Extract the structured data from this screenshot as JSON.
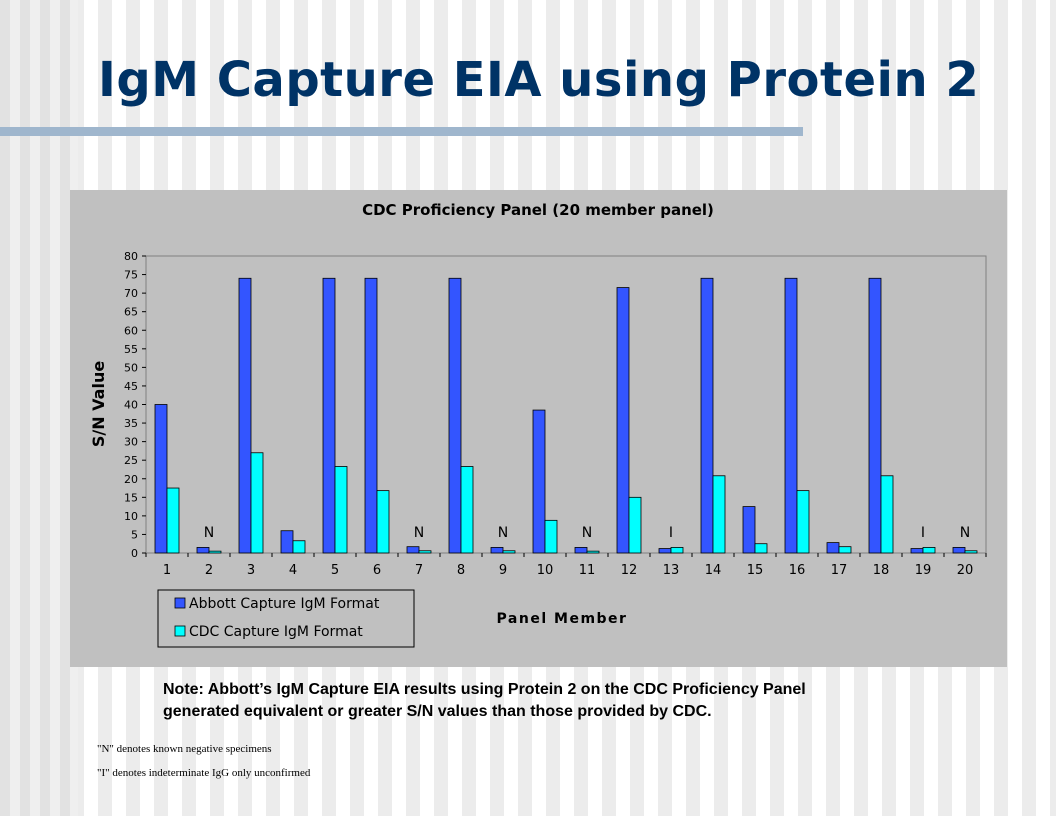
{
  "slide": {
    "title": "IgM Capture EIA using Protein 2",
    "note": "Note: Abbott’s IgM Capture EIA results using Protein 2 on the CDC Proficiency Panel generated equivalent or greater S/N values than those provided by CDC.",
    "footnotes": [
      "\"N\"  denotes known negative specimens",
      "\"I\"  denotes indeterminate IgG only unconfirmed"
    ]
  },
  "colors": {
    "title": "#003366",
    "abbott": "#3355ff",
    "cdc": "#00ffff",
    "panel_bg": "#c0c0c0",
    "rule": "#9fb6cd"
  },
  "chart_data": {
    "type": "bar",
    "title": "CDC Proficiency Panel (20 member panel)",
    "xlabel": "Panel Member",
    "ylabel": "S/N Value",
    "ylim": [
      0,
      80
    ],
    "yticks": [
      0,
      5,
      10,
      15,
      20,
      25,
      30,
      35,
      40,
      45,
      50,
      55,
      60,
      65,
      70,
      75,
      80
    ],
    "grid": false,
    "legend_position": "bottom-left",
    "categories": [
      "1",
      "2",
      "3",
      "4",
      "5",
      "6",
      "7",
      "8",
      "9",
      "10",
      "11",
      "12",
      "13",
      "14",
      "15",
      "16",
      "17",
      "18",
      "19",
      "20"
    ],
    "series": [
      {
        "name": "Abbott Capture IgM Format",
        "color": "#3355ff",
        "values": [
          40,
          1.5,
          74,
          6,
          74,
          74,
          1.7,
          74,
          1.5,
          38.5,
          1.5,
          71.5,
          1.2,
          74,
          12.5,
          74,
          2.8,
          74,
          1.2,
          1.5
        ]
      },
      {
        "name": "CDC Capture IgM Format",
        "color": "#00ffff",
        "values": [
          17.5,
          0.5,
          27,
          3.3,
          23.3,
          16.8,
          0.6,
          23.3,
          0.6,
          8.8,
          0.5,
          15,
          1.5,
          20.8,
          2.5,
          16.8,
          1.7,
          20.8,
          1.5,
          0.6
        ]
      }
    ],
    "annotations": [
      {
        "category": "2",
        "text": "N"
      },
      {
        "category": "7",
        "text": "N"
      },
      {
        "category": "9",
        "text": "N"
      },
      {
        "category": "11",
        "text": "N"
      },
      {
        "category": "13",
        "text": "I"
      },
      {
        "category": "19",
        "text": "I"
      },
      {
        "category": "20",
        "text": "N"
      }
    ]
  }
}
